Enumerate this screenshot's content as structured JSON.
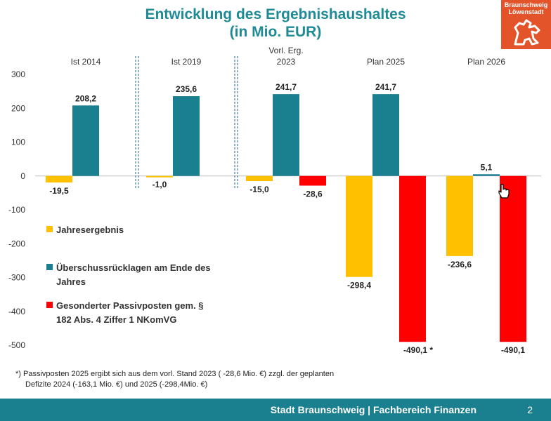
{
  "title_line1": "Entwicklung des Ergebnishaushaltes",
  "title_line2": "(in Mio. EUR)",
  "logo": {
    "line1": "Braunschweig",
    "line2": "Löwenstadt",
    "icon": "lion-icon",
    "color": "#e3542a"
  },
  "chart_data": {
    "type": "bar",
    "categories": [
      "Ist 2014",
      "Ist 2019",
      "Vorl. Erg. 2023",
      "Plan 2025",
      "Plan 2026"
    ],
    "category_labels": [
      [
        "Ist 2014"
      ],
      [
        "Ist 2019"
      ],
      [
        "Vorl. Erg.",
        "2023"
      ],
      [
        "Plan 2025"
      ],
      [
        "Plan 2026"
      ]
    ],
    "series": [
      {
        "name": "Jahresergebnis",
        "color": "#ffc000",
        "values": [
          -19.5,
          -1.0,
          -15.0,
          -298.4,
          -236.6
        ],
        "labels": [
          "-19,5",
          "-1,0",
          "-15,0",
          "-298,4",
          "-236,6"
        ]
      },
      {
        "name": "Überschussrücklagen am Ende des Jahres",
        "color": "#1a7f8f",
        "values": [
          208.2,
          235.6,
          241.7,
          241.7,
          5.1
        ],
        "labels": [
          "208,2",
          "235,6",
          "241,7",
          "241,7",
          "5,1"
        ]
      },
      {
        "name": "Gesonderter Passivposten gem. § 182 Abs. 4 Ziffer 1 NKomVG",
        "color": "#ff0000",
        "values": [
          null,
          null,
          -28.6,
          -490.1,
          -490.1
        ],
        "labels": [
          "",
          "",
          "-28,6",
          "-490,1 *",
          "-490,1"
        ]
      }
    ],
    "legend": [
      {
        "lines": [
          "Jahresergebnis"
        ],
        "color": "#ffc000"
      },
      {
        "lines": [
          "Überschussrücklagen am Ende des",
          "Jahres"
        ],
        "color": "#1a7f8f"
      },
      {
        "lines": [
          "Gesonderter Passivposten gem. §",
          "182 Abs. 4 Ziffer 1 NKomVG"
        ],
        "color": "#ff0000"
      }
    ],
    "legend_position": "left-middle",
    "ylim": [
      -500,
      300
    ],
    "yticks": [
      300,
      200,
      100,
      0,
      -100,
      -200,
      -300,
      -400,
      -500
    ],
    "grid": false
  },
  "footnote_line1": "*) Passivposten 2025 ergibt sich aus dem vorl. Stand 2023 ( -28,6 Mio. €) zzgl. der geplanten",
  "footnote_line2": "Defizite 2024 (-163,1 Mio. €) und 2025 (-298,4Mio. €)",
  "footer_text": "Stadt Braunschweig | Fachbereich Finanzen",
  "page_number": "2"
}
